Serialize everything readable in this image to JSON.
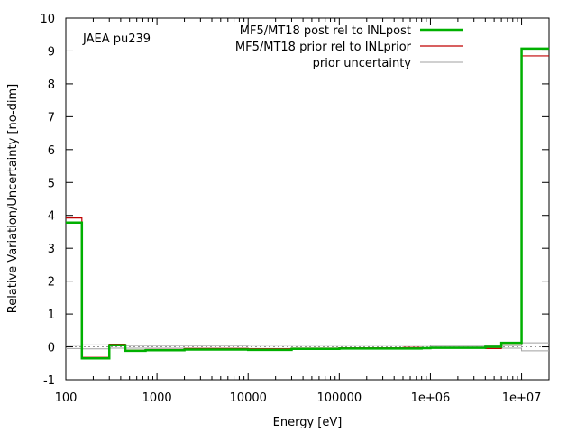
{
  "chart_data": {
    "type": "line",
    "title": "",
    "xlabel": "Energy [eV]",
    "ylabel": "Relative Variation/Uncertainty [no-dim]",
    "annotation": "JAEA pu239",
    "xscale": "log",
    "xlim": [
      100,
      20000000
    ],
    "ylim": [
      -1,
      10
    ],
    "xticks": [
      100,
      1000,
      10000,
      100000,
      1000000,
      10000000
    ],
    "xtick_labels": [
      "100",
      "1000",
      "10000",
      "100000",
      "1e+06",
      "1e+07"
    ],
    "yticks": [
      -1,
      0,
      1,
      2,
      3,
      4,
      5,
      6,
      7,
      8,
      9,
      10
    ],
    "ytick_labels": [
      "-1",
      "0",
      "1",
      "2",
      "3",
      "4",
      "5",
      "6",
      "7",
      "8",
      "9",
      "10"
    ],
    "legend_position": "top-right",
    "grid": false,
    "series": [
      {
        "name": "MF5/MT18 post rel to INLpost",
        "color": "#00b000",
        "style": "thick-step",
        "x": [
          100,
          150,
          300,
          450,
          750,
          2000,
          10000,
          30000,
          100000,
          500000,
          800000,
          1000000,
          4000000,
          6000000,
          10000000,
          20000000
        ],
        "y": [
          3.78,
          -0.35,
          0.05,
          -0.12,
          -0.1,
          -0.08,
          -0.09,
          -0.06,
          -0.05,
          -0.05,
          -0.04,
          -0.03,
          0.0,
          0.12,
          9.07,
          9.07
        ]
      },
      {
        "name": "MF5/MT18 prior rel to INLprior",
        "color": "#c00000",
        "style": "thin-step",
        "x": [
          100,
          150,
          300,
          450,
          750,
          2000,
          10000,
          30000,
          100000,
          500000,
          800000,
          1000000,
          4000000,
          6000000,
          10000000,
          20000000
        ],
        "y": [
          3.92,
          -0.32,
          0.08,
          -0.1,
          -0.08,
          -0.05,
          -0.06,
          -0.04,
          -0.03,
          -0.02,
          -0.03,
          -0.02,
          -0.05,
          0.1,
          8.85,
          8.85
        ]
      },
      {
        "name": "prior uncertainty",
        "color": "#a0a0a0",
        "style": "thin-step-symmetric",
        "x": [
          100,
          150,
          300,
          1000,
          10000,
          100000,
          1000000,
          4000000,
          6000000,
          10000000,
          20000000
        ],
        "y": [
          0.05,
          0.06,
          0.04,
          0.04,
          0.05,
          0.05,
          0.02,
          0.03,
          0.04,
          0.12,
          0.12
        ]
      }
    ]
  }
}
